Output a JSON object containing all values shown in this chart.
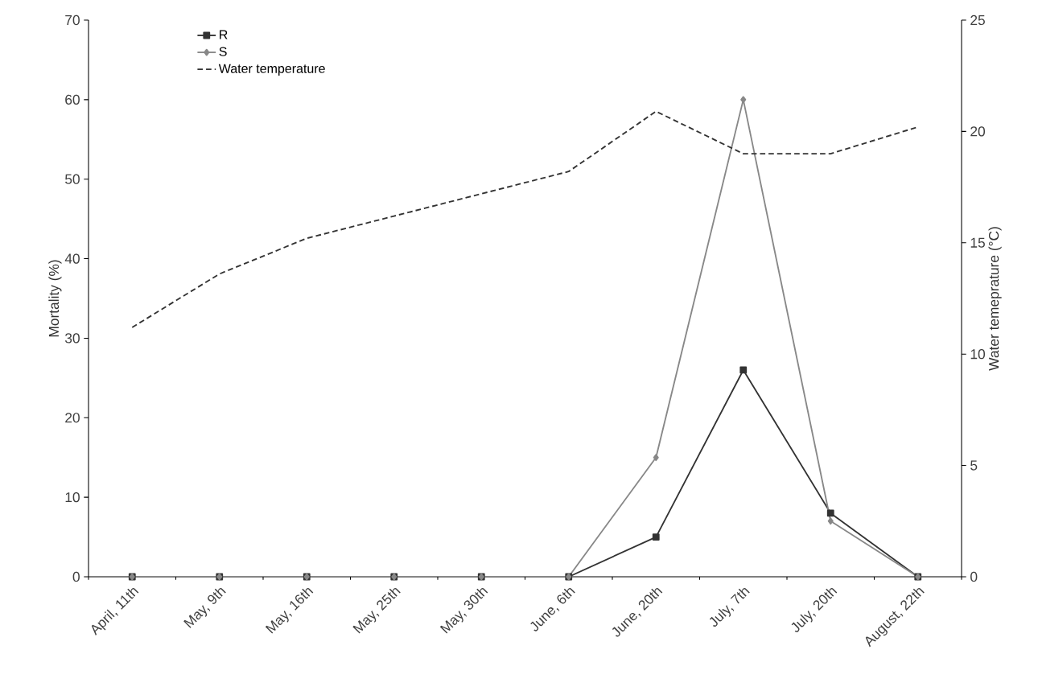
{
  "chart_data": {
    "type": "line",
    "categories": [
      "April, 11th",
      "May, 9th",
      "May, 16th",
      "May, 25th",
      "May, 30th",
      "June, 6th",
      "June, 20th",
      "July, 7th",
      "July, 20th",
      "August, 22th"
    ],
    "series": [
      {
        "name": "R",
        "color": "#333333",
        "marker": "square",
        "line_style": "solid",
        "values": [
          0,
          0,
          0,
          0,
          0,
          0,
          5,
          26,
          8,
          0
        ]
      },
      {
        "name": "S",
        "color": "#888888",
        "marker": "diamond",
        "line_style": "solid",
        "values": [
          0,
          0,
          0,
          0,
          0,
          0,
          15,
          60,
          7,
          0
        ]
      },
      {
        "name": "Water temperature",
        "color": "#333333",
        "marker": "none",
        "line_style": "dashed",
        "axis": "y2",
        "values": [
          11.2,
          13.6,
          15.2,
          16.2,
          17.2,
          18.2,
          20.9,
          19.0,
          19.0,
          20.2
        ]
      }
    ],
    "ylabel": "Mortality (%)",
    "y2label": "Water temeprature (°C)",
    "ylim": [
      0,
      70
    ],
    "yticks": [
      0,
      10,
      20,
      30,
      40,
      50,
      60,
      70
    ],
    "y2lim": [
      0,
      25
    ],
    "y2ticks": [
      0,
      5,
      10,
      15,
      20,
      25
    ],
    "legend": "top left"
  }
}
